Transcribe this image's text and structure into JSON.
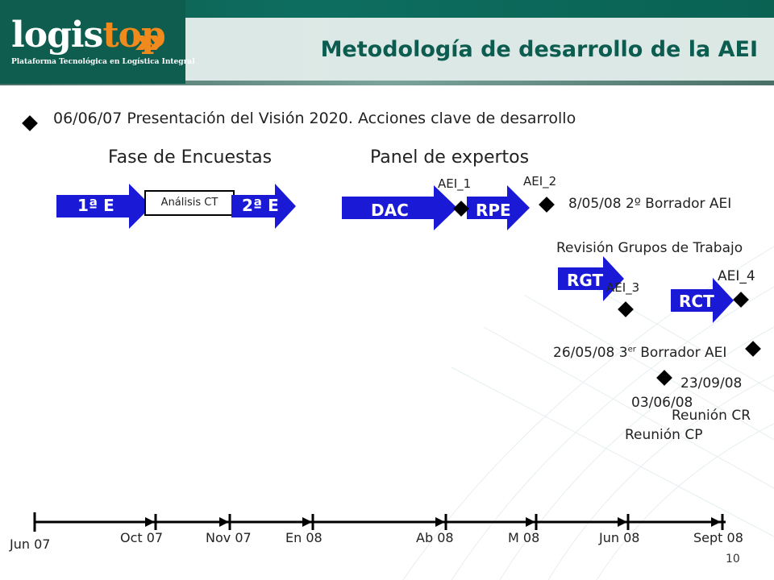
{
  "header": {
    "logo_main": "logis",
    "logo_accent": "top",
    "logo_subtitle": "Plataforma Tecnológica en Logística Integral",
    "title": "Metodología de desarrollo de la AEI"
  },
  "intro": "06/06/07 Presentación del Visión 2020. Acciones clave de desarrollo",
  "phases": {
    "encuestas": "Fase de Encuestas",
    "expertos": "Panel de expertos"
  },
  "arrows": {
    "e1": "1ª E",
    "e2": "2ª E",
    "analisis": "Análisis CT",
    "dac": "DAC",
    "rpe": "RPE",
    "rgt": "RGT",
    "rct": "RCT"
  },
  "milestones": {
    "aei1": "AEI_1",
    "aei2": "AEI_2",
    "aei3": "AEI_3",
    "aei4": "AEI_4",
    "borrador2": "8/05/08 2º Borrador AEI",
    "revision": "Revisión Grupos de Trabajo",
    "borrador3_date": "26/05/08 3",
    "borrador3_sup": "er",
    "borrador3_rest": " Borrador AEI",
    "date_0309": "23/09/08",
    "reunion_cr": "Reunión CR",
    "date_0306": "03/06/08",
    "reunion_cp": "Reunión CP"
  },
  "timeline": {
    "labels": [
      "Jun 07",
      "Oct 07",
      "Nov 07",
      "En 08",
      "Ab 08",
      "M 08",
      "Jun 08",
      "Sept 08"
    ]
  },
  "page_number": "10",
  "colors": {
    "brand_green": "#0c5c50",
    "accent_orange": "#f08a1c",
    "arrow_blue": "#1a1ad6"
  }
}
